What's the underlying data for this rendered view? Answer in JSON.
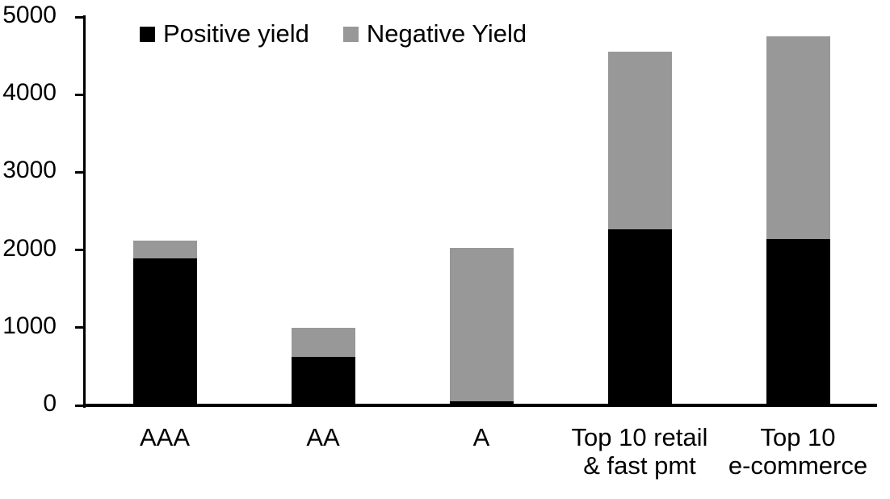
{
  "chart_data": {
    "type": "bar",
    "stacked": true,
    "title": "",
    "xlabel": "",
    "ylabel": "",
    "categories": [
      "AAA",
      "AA",
      "A",
      "Top 10 retail\n& fast pmt",
      "Top 10\ne-commerce"
    ],
    "series": [
      {
        "name": "Positive yield",
        "color": "#000000",
        "values": [
          1890,
          620,
          50,
          2270,
          2140
        ]
      },
      {
        "name": "Negative Yield",
        "color": "#989898",
        "values": [
          230,
          380,
          1980,
          2280,
          2610
        ]
      }
    ],
    "stack_totals": [
      2120,
      1000,
      2030,
      4550,
      4750
    ],
    "ylim": [
      0,
      5000
    ],
    "yticks": [
      "0",
      "1000",
      "2000",
      "3000",
      "4000",
      "5000"
    ],
    "grid": false,
    "legend_position": "top",
    "axis_color": "#000000",
    "background_color": "#ffffff"
  }
}
